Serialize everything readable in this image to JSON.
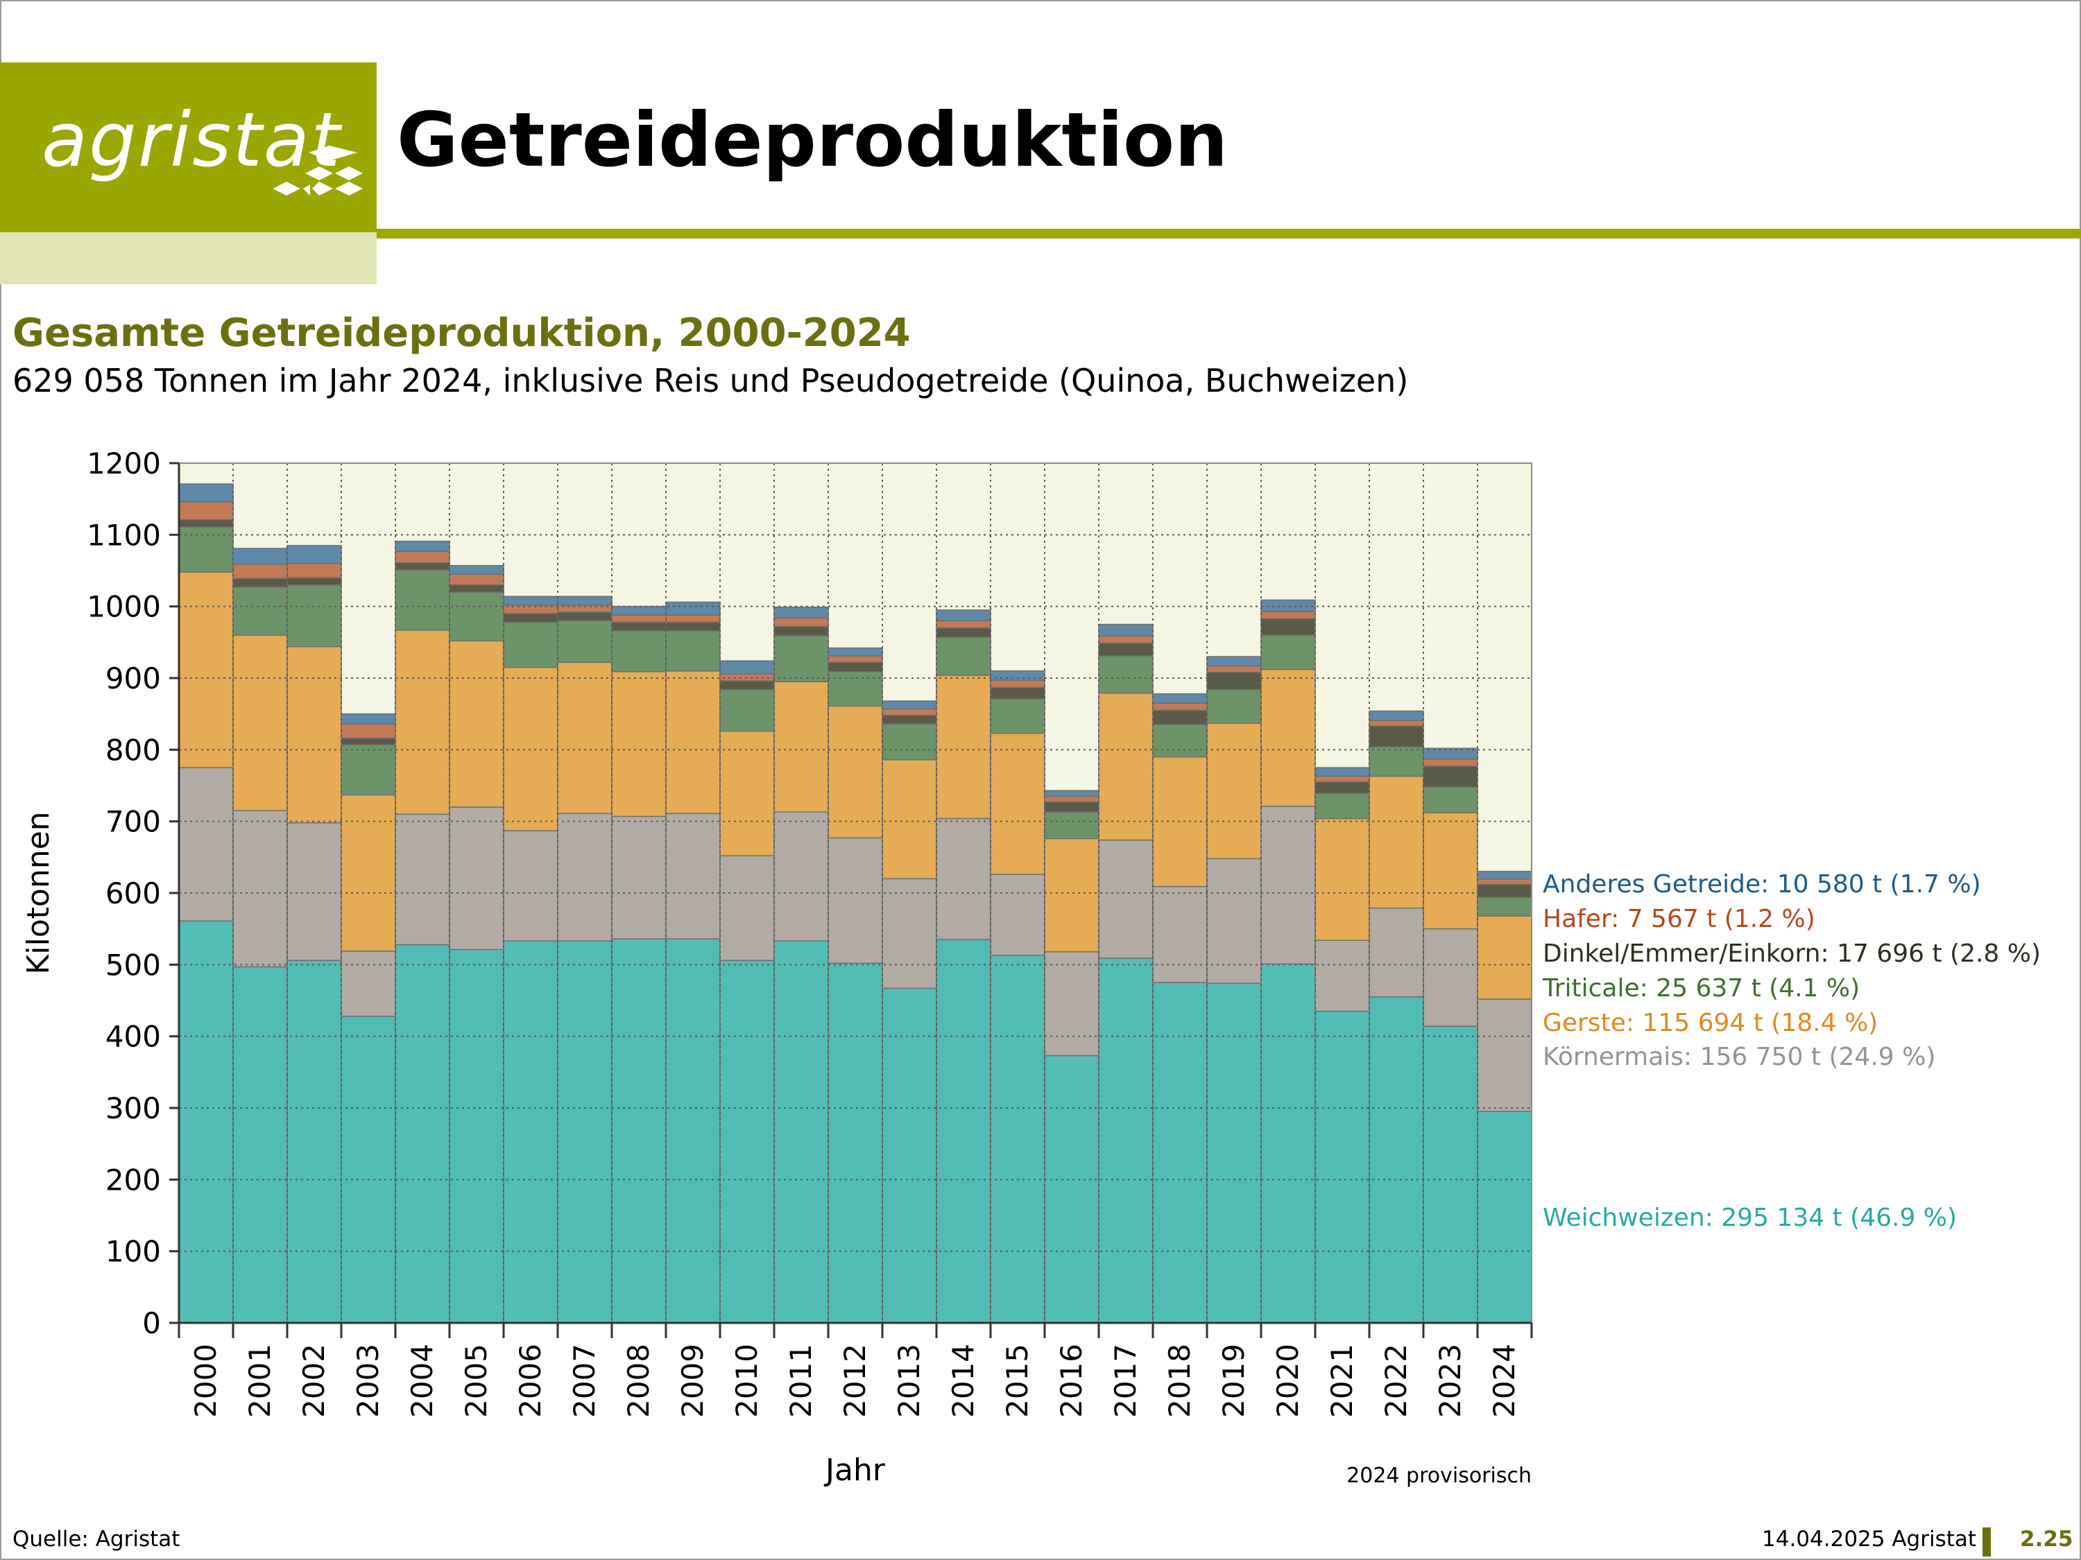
{
  "header": {
    "logo_text": "agristat",
    "title": "Getreideproduktion"
  },
  "subtitle": "Gesamte Getreideproduktion, 2000-2024",
  "subline": "629 058 Tonnen im Jahr 2024, inklusive Reis und Pseudogetreide (Quinoa, Buchweizen)",
  "footer": {
    "source": "Quelle: Agristat",
    "date": "14.04.2025 Agristat",
    "page": "2.25"
  },
  "chart_data": {
    "type": "bar",
    "stacked": true,
    "title": "",
    "xlabel": "Jahr",
    "ylabel": "Kilotonnen",
    "ylim": [
      0,
      1200
    ],
    "yticks": [
      0,
      100,
      200,
      300,
      400,
      500,
      600,
      700,
      800,
      900,
      1000,
      1100,
      1200
    ],
    "grid": true,
    "note": "2024 provisorisch",
    "categories": [
      "2000",
      "2001",
      "2002",
      "2003",
      "2004",
      "2005",
      "2006",
      "2007",
      "2008",
      "2009",
      "2010",
      "2011",
      "2012",
      "2013",
      "2014",
      "2015",
      "2016",
      "2017",
      "2018",
      "2019",
      "2020",
      "2021",
      "2022",
      "2023",
      "2024"
    ],
    "series": [
      {
        "name": "Weichweizen",
        "color": "#52bdb5",
        "values": [
          561,
          497,
          506,
          428,
          528,
          521,
          533,
          533,
          536,
          536,
          506,
          533,
          502,
          467,
          535,
          513,
          373,
          509,
          475,
          474,
          501,
          435,
          455,
          414,
          295
        ]
      },
      {
        "name": "Körnermais",
        "color": "#b1aba3",
        "values": [
          214,
          218,
          192,
          91,
          182,
          199,
          154,
          178,
          171,
          175,
          146,
          180,
          175,
          153,
          169,
          113,
          145,
          165,
          134,
          174,
          220,
          99,
          124,
          136,
          157
        ]
      },
      {
        "name": "Gerste",
        "color": "#e5ab55",
        "values": [
          273,
          245,
          246,
          218,
          257,
          232,
          228,
          211,
          202,
          199,
          174,
          182,
          184,
          166,
          200,
          197,
          158,
          205,
          181,
          189,
          191,
          170,
          184,
          162,
          116
        ]
      },
      {
        "name": "Triticale",
        "color": "#6d9468",
        "values": [
          63,
          67,
          86,
          70,
          84,
          68,
          63,
          58,
          57,
          56,
          58,
          64,
          48,
          50,
          53,
          48,
          37,
          52,
          45,
          47,
          48,
          35,
          41,
          36,
          26
        ]
      },
      {
        "name": "Dinkel/Emmer/Einkorn",
        "color": "#5a5a48",
        "values": [
          10,
          12,
          10,
          9,
          10,
          10,
          12,
          12,
          12,
          12,
          12,
          13,
          13,
          12,
          13,
          16,
          14,
          18,
          20,
          24,
          23,
          16,
          29,
          29,
          18
        ]
      },
      {
        "name": "Hafer",
        "color": "#c47a55",
        "values": [
          25,
          20,
          20,
          20,
          16,
          15,
          12,
          10,
          10,
          10,
          10,
          12,
          9,
          9,
          10,
          10,
          8,
          10,
          10,
          9,
          10,
          8,
          8,
          10,
          7.6
        ]
      },
      {
        "name": "Anderes Getreide",
        "color": "#5f89a8",
        "values": [
          25,
          22,
          25,
          14,
          14,
          12,
          12,
          12,
          12,
          18,
          18,
          15,
          11,
          11,
          15,
          13,
          8,
          16,
          13,
          13,
          16,
          12,
          13,
          15,
          10.6
        ]
      }
    ],
    "legend": [
      {
        "text": "Anderes Getreide: 10 580 t (1.7 %)",
        "color": "#1f5a8a"
      },
      {
        "text": "Hafer: 7 567 t (1.2 %)",
        "color": "#b44a18"
      },
      {
        "text": "Dinkel/Emmer/Einkorn: 17 696 t (2.8 %)",
        "color": "#2f2f1f"
      },
      {
        "text": "Triticale: 25 637 t (4.1 %)",
        "color": "#3f6f2f"
      },
      {
        "text": "Gerste: 115 694 t (18.4 %)",
        "color": "#e08a1f"
      },
      {
        "text": "Körnermais: 156 750 t (24.9 %)",
        "color": "#9a938b"
      },
      {
        "text": "Weichweizen: 295 134 t (46.9 %)",
        "color": "#2aa9a3"
      }
    ]
  }
}
